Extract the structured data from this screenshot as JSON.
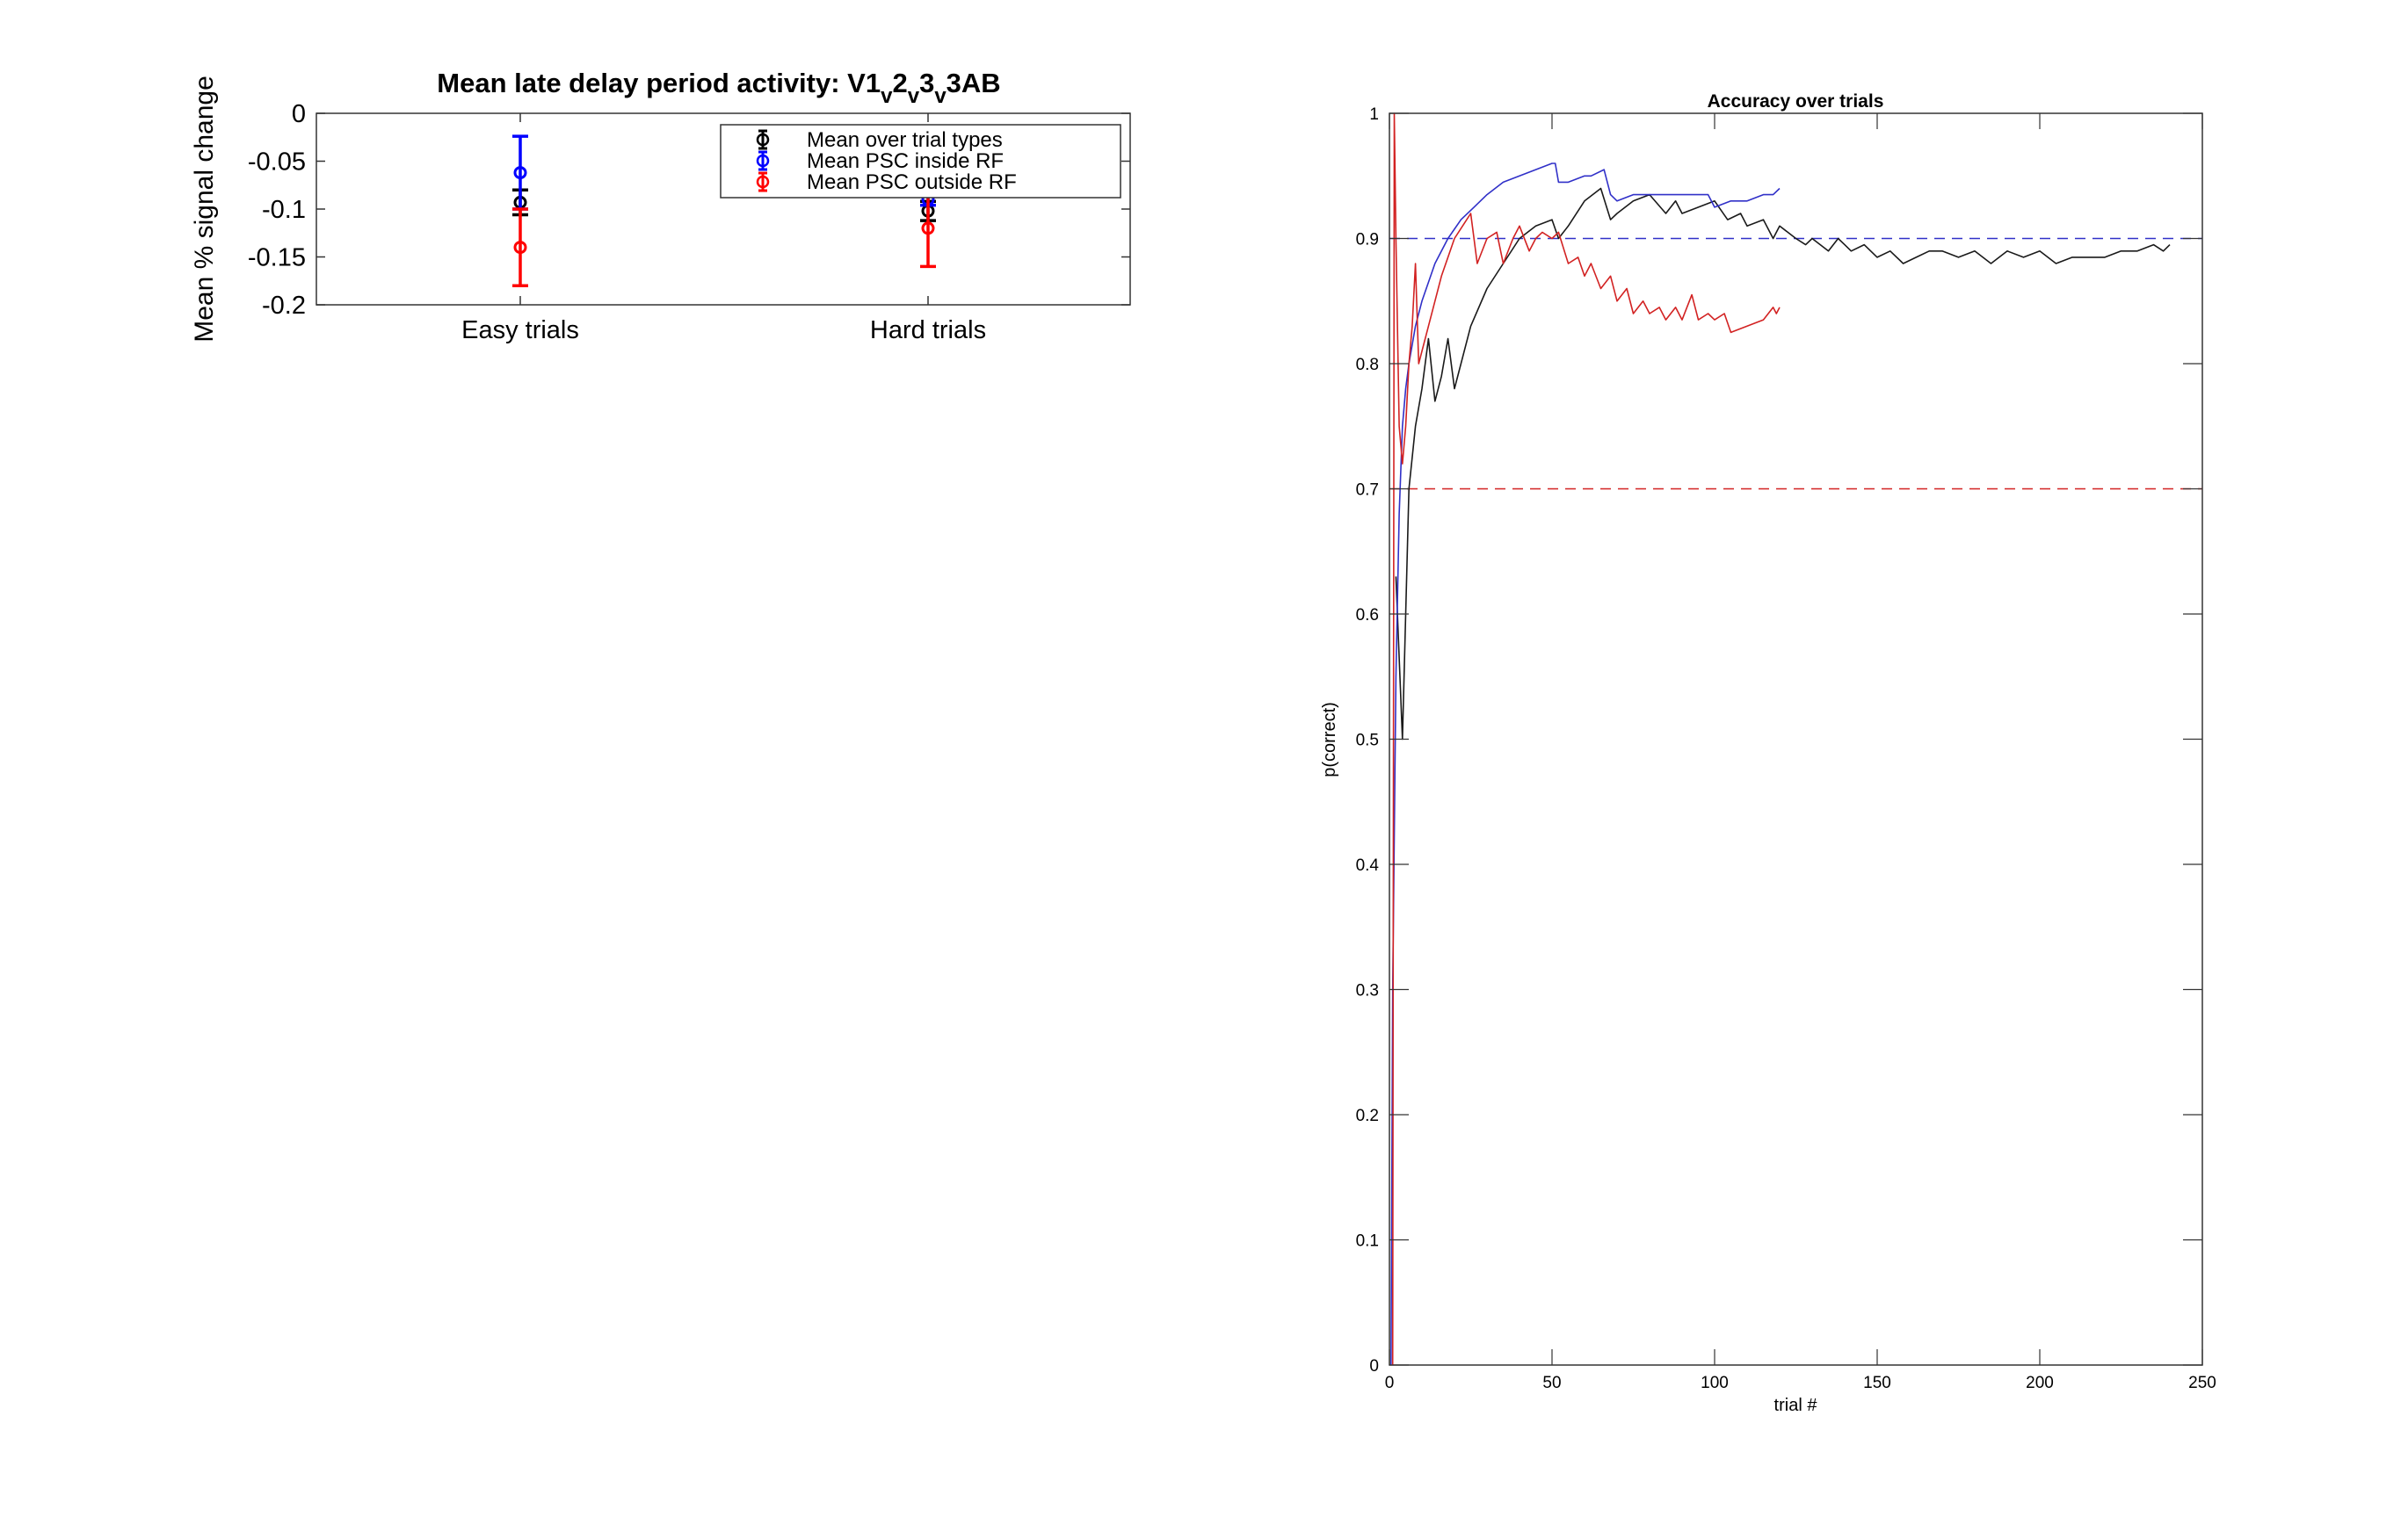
{
  "colors": {
    "black": "#000000",
    "blue": "#0000ff",
    "red": "#ff0000",
    "line_black": "#1a1a1a",
    "line_blue": "#3030c8",
    "line_red": "#d22222"
  },
  "chart_data": [
    {
      "type": "errorbar",
      "title_parts": [
        "Mean late delay period activity: V1",
        "v",
        "2",
        "v",
        "3",
        "v",
        "3AB"
      ],
      "ylabel": "Mean % signal change",
      "xlabel": "",
      "categories": [
        "Easy trials",
        "Hard trials"
      ],
      "ylim": [
        -0.2,
        0
      ],
      "yticks": [
        0,
        -0.05,
        -0.1,
        -0.15,
        -0.2
      ],
      "ytick_labels": [
        "0",
        "-0.05",
        "-0.1",
        "-0.15",
        "-0.2"
      ],
      "legend_position": "top-right",
      "series": [
        {
          "name": "Mean over trial types",
          "color": "#000000",
          "values": [
            -0.093,
            -0.102
          ],
          "err": [
            0.013,
            0.01
          ]
        },
        {
          "name": "Mean PSC inside RF",
          "color": "#0000ff",
          "values": [
            -0.062,
            -0.09
          ],
          "err": [
            0.038,
            0.006
          ]
        },
        {
          "name": "Mean PSC outside RF",
          "color": "#ff0000",
          "values": [
            -0.14,
            -0.12
          ],
          "err": [
            0.04,
            0.04
          ]
        }
      ]
    },
    {
      "type": "line",
      "title": "Accuracy over trials",
      "xlabel": "trial #",
      "ylabel": "p(correct)",
      "xlim": [
        0,
        250
      ],
      "ylim": [
        0,
        1
      ],
      "xticks": [
        0,
        50,
        100,
        150,
        200,
        250
      ],
      "yticks": [
        0,
        0.1,
        0.2,
        0.3,
        0.4,
        0.5,
        0.6,
        0.7,
        0.8,
        0.9,
        1
      ],
      "ytick_labels": [
        "0",
        "0.1",
        "0.2",
        "0.3",
        "0.4",
        "0.5",
        "0.6",
        "0.7",
        "0.8",
        "0.9",
        "1"
      ],
      "reference_lines": [
        {
          "y": 0.9,
          "color": "#3030c8",
          "style": "dashed"
        },
        {
          "y": 0.7,
          "color": "#d22222",
          "style": "dashed"
        }
      ],
      "series": [
        {
          "color": "#1a1a1a",
          "x": [
            2,
            4,
            6,
            8,
            10,
            12,
            14,
            16,
            18,
            20,
            25,
            30,
            35,
            40,
            45,
            50,
            52,
            55,
            60,
            65,
            68,
            70,
            75,
            80,
            85,
            88,
            90,
            95,
            100,
            104,
            108,
            110,
            115,
            118,
            120,
            125,
            128,
            130,
            135,
            138,
            140,
            142,
            146,
            150,
            154,
            158,
            162,
            166,
            170,
            175,
            180,
            185,
            190,
            195,
            200,
            205,
            210,
            215,
            220,
            225,
            230,
            235,
            238,
            240
          ],
          "y": [
            0.63,
            0.5,
            0.7,
            0.75,
            0.78,
            0.82,
            0.77,
            0.79,
            0.82,
            0.78,
            0.83,
            0.86,
            0.88,
            0.9,
            0.91,
            0.915,
            0.9,
            0.91,
            0.93,
            0.94,
            0.915,
            0.92,
            0.93,
            0.935,
            0.92,
            0.93,
            0.92,
            0.925,
            0.93,
            0.915,
            0.92,
            0.91,
            0.915,
            0.9,
            0.91,
            0.9,
            0.895,
            0.9,
            0.89,
            0.9,
            0.895,
            0.89,
            0.895,
            0.885,
            0.89,
            0.88,
            0.885,
            0.89,
            0.89,
            0.885,
            0.89,
            0.88,
            0.89,
            0.885,
            0.89,
            0.88,
            0.885,
            0.885,
            0.885,
            0.89,
            0.89,
            0.895,
            0.89,
            0.895
          ]
        },
        {
          "color": "#3030c8",
          "x": [
            0.5,
            1,
            2,
            3,
            4,
            5,
            6,
            8,
            10,
            14,
            18,
            22,
            26,
            30,
            35,
            40,
            45,
            50,
            51,
            52,
            55,
            60,
            62,
            66,
            68,
            70,
            75,
            80,
            85,
            90,
            95,
            98,
            100,
            105,
            110,
            115,
            118,
            120
          ],
          "y": [
            0.0,
            0.3,
            0.55,
            0.68,
            0.75,
            0.78,
            0.8,
            0.83,
            0.85,
            0.88,
            0.9,
            0.915,
            0.925,
            0.935,
            0.945,
            0.95,
            0.955,
            0.96,
            0.96,
            0.945,
            0.945,
            0.95,
            0.95,
            0.955,
            0.935,
            0.93,
            0.935,
            0.935,
            0.935,
            0.935,
            0.935,
            0.935,
            0.925,
            0.93,
            0.93,
            0.935,
            0.935,
            0.94
          ]
        },
        {
          "color": "#d22222",
          "x": [
            1,
            1.5,
            2,
            3,
            4,
            5,
            6,
            7,
            8,
            9,
            12,
            16,
            20,
            25,
            27,
            30,
            33,
            35,
            38,
            40,
            43,
            45,
            47,
            50,
            52,
            55,
            58,
            60,
            62,
            65,
            68,
            70,
            73,
            75,
            78,
            80,
            83,
            85,
            88,
            90,
            93,
            95,
            98,
            100,
            103,
            105,
            110,
            115,
            118,
            119,
            120
          ],
          "y": [
            0.0,
            1.0,
            0.9,
            0.75,
            0.72,
            0.75,
            0.8,
            0.83,
            0.88,
            0.8,
            0.83,
            0.87,
            0.9,
            0.92,
            0.88,
            0.9,
            0.905,
            0.88,
            0.9,
            0.91,
            0.89,
            0.9,
            0.905,
            0.9,
            0.905,
            0.88,
            0.885,
            0.87,
            0.88,
            0.86,
            0.87,
            0.85,
            0.86,
            0.84,
            0.85,
            0.84,
            0.845,
            0.835,
            0.845,
            0.835,
            0.855,
            0.835,
            0.84,
            0.835,
            0.84,
            0.825,
            0.83,
            0.835,
            0.845,
            0.84,
            0.845
          ]
        }
      ]
    }
  ]
}
